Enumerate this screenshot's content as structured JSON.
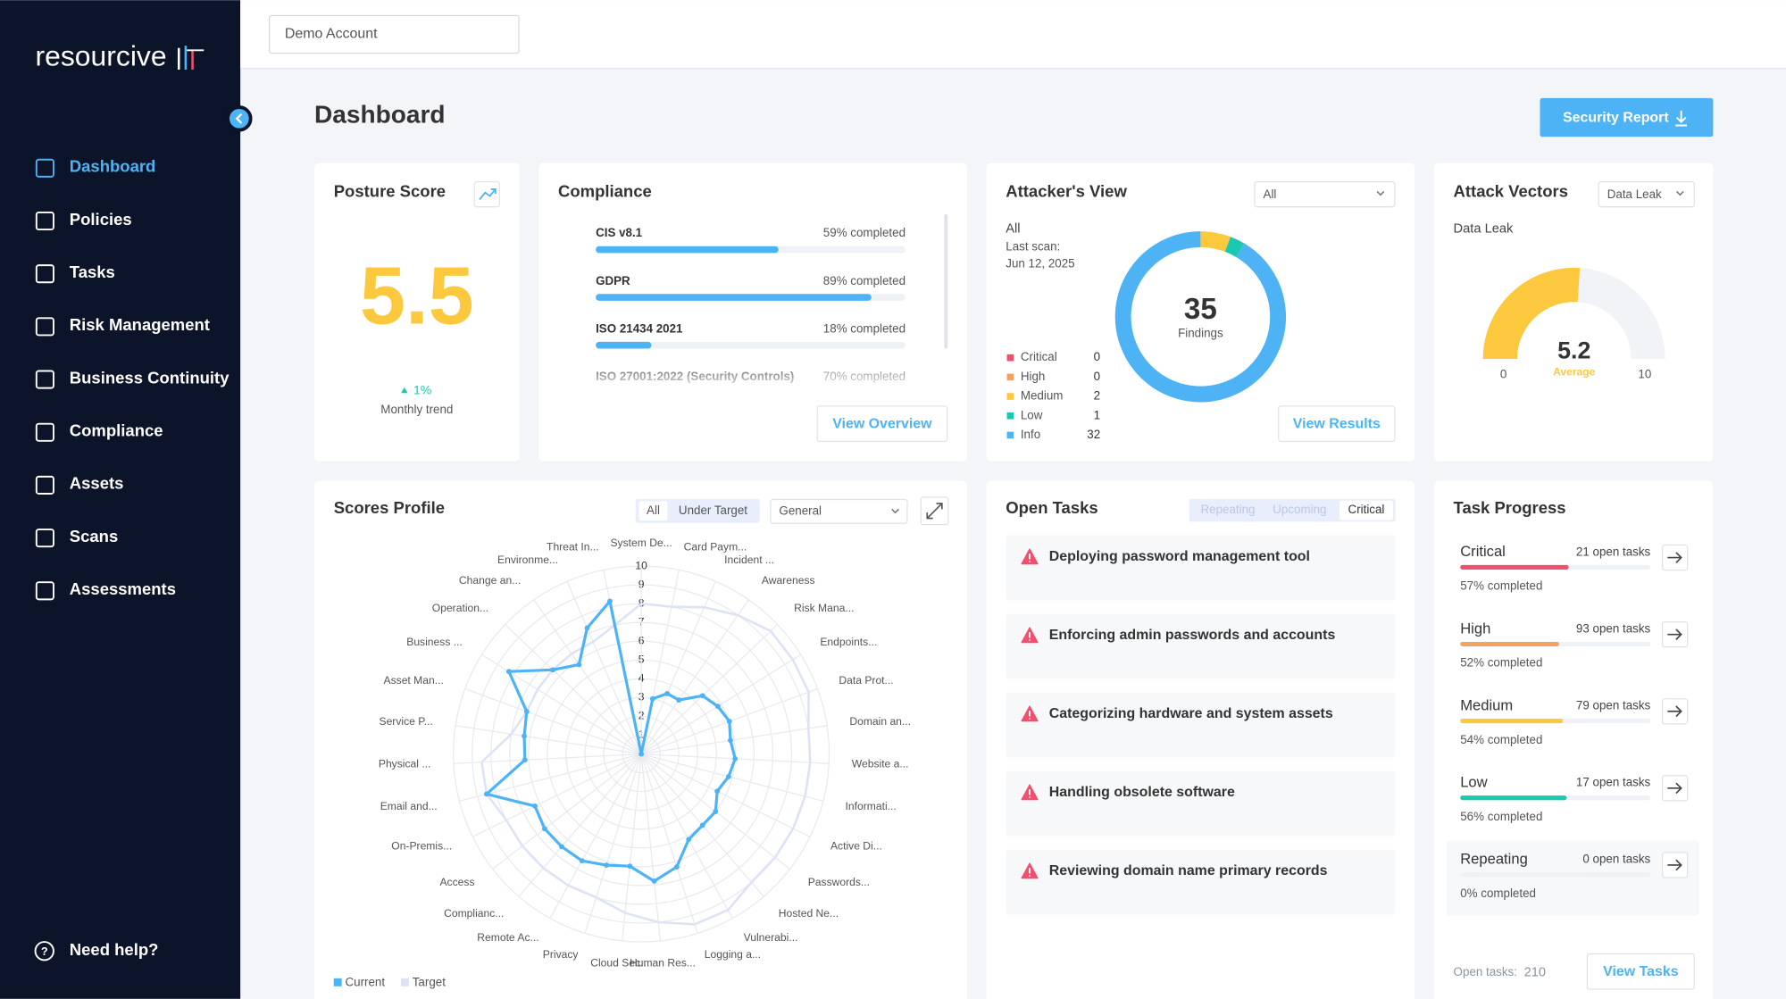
{
  "sidebar": {
    "logo": "resourcive",
    "nav": [
      "Dashboard",
      "Policies",
      "Tasks",
      "Risk Management",
      "Business Continuity",
      "Compliance",
      "Assets",
      "Scans",
      "Assessments"
    ],
    "help": "Need help?"
  },
  "topbar": {
    "account": "Demo Account"
  },
  "header": {
    "title": "Dashboard",
    "button": "Security Report"
  },
  "posture": {
    "title": "Posture Score",
    "score": 5.5,
    "trend": "1%",
    "trend_label": "Monthly trend"
  },
  "compliance": {
    "title": "Compliance",
    "items": [
      {
        "name": "CIS v8.1",
        "value": 59,
        "value_label": "59% completed"
      },
      {
        "name": "GDPR",
        "value": 89,
        "value_label": "89% completed"
      },
      {
        "name": "ISO 21434 2021",
        "value": 18,
        "value_label": "18% completed"
      },
      {
        "name": "ISO 27001:2022 (Security Controls)",
        "value": 70,
        "value_label": "70% completed"
      }
    ],
    "button": "View Overview"
  },
  "attacker": {
    "title": "Attacker's View",
    "filter": "All",
    "scope": "All",
    "last_scan": "Last scan:",
    "last_scan_date": "Jun 12, 2025",
    "total": 35,
    "total_label": "Findings",
    "severities": [
      {
        "name": "Critical",
        "value": 0,
        "color": "#f0506e"
      },
      {
        "name": "High",
        "value": 0,
        "color": "#f5a25d"
      },
      {
        "name": "Medium",
        "value": 2,
        "color": "#fcc93e"
      },
      {
        "name": "Low",
        "value": 1,
        "color": "#1cc8b0"
      },
      {
        "name": "Info",
        "value": 32,
        "color": "#4db3f5"
      }
    ],
    "button": "View Results"
  },
  "vectors": {
    "title": "Attack Vectors",
    "filter": "Data Leak",
    "subtitle": "Data Leak",
    "value": 5.2,
    "value_label": "Average",
    "lim": [
      0,
      10
    ],
    "ticks": [
      0,
      10
    ],
    "color": "#fcc93e"
  },
  "scores_profile": {
    "title": "Scores Profile",
    "toggles": [
      "All",
      "Under Target"
    ],
    "filter": "General",
    "categories": [
      "System De...",
      "Card Paym...",
      "Incident ...",
      "Awareness",
      "Risk Mana...",
      "Endpoints...",
      "Data Prot...",
      "Domain an...",
      "Website a...",
      "Informati...",
      "Active Di...",
      "Passwords...",
      "Hosted Ne...",
      "Vulnerabi...",
      "Logging a...",
      "Human Res...",
      "Cloud Sec...",
      "Privacy",
      "Remote Ac...",
      "Complianc...",
      "Access",
      "On-Premis...",
      "Email and...",
      "Physical ...",
      "Service P...",
      "Asset Man...",
      "Business ...",
      "Operation...",
      "Change an...",
      "Environme...",
      "Threat In..."
    ],
    "rlim": [
      0,
      10
    ],
    "rticks": [
      1,
      2,
      3,
      4,
      5,
      6,
      7,
      8,
      9,
      10
    ],
    "series": [
      {
        "name": "Current",
        "color": "#4db3f5",
        "values": [
          0,
          3,
          3.5,
          3.5,
          4.5,
          4.8,
          5,
          4.8,
          5,
          4.8,
          4.5,
          5,
          5,
          5.2,
          6.3,
          6.8,
          6,
          6.2,
          6.5,
          6.5,
          6.5,
          6.3,
          8.5,
          6.2,
          6.3,
          6.5,
          8.3,
          6.5,
          5.8,
          7.3,
          8.3
        ]
      },
      {
        "name": "Target",
        "color": "#dde2f5",
        "values": [
          8,
          8,
          8.5,
          9,
          9.5,
          9.5,
          9.5,
          9,
          9,
          9,
          9,
          9,
          9,
          9.5,
          9.5,
          9,
          8.5,
          8,
          8,
          8,
          8,
          8,
          8.5,
          8.5,
          7,
          6.5,
          6.5,
          6.5,
          6.5,
          6.5,
          7
        ]
      }
    ]
  },
  "open_tasks": {
    "title": "Open Tasks",
    "tabs": [
      "Repeating",
      "Upcoming",
      "Critical"
    ],
    "tasks": [
      "Deploying password management tool",
      "Enforcing admin passwords and accounts",
      "Categorizing hardware and system assets",
      "Handling obsolete software",
      "Reviewing domain name primary records"
    ]
  },
  "task_progress": {
    "title": "Task Progress",
    "items": [
      {
        "name": "Critical",
        "open_tasks": "21 open tasks",
        "completed": 57,
        "completed_label": "57% completed",
        "color": "#f0506e"
      },
      {
        "name": "High",
        "open_tasks": "93 open tasks",
        "completed": 52,
        "completed_label": "52% completed",
        "color": "#f5a25d"
      },
      {
        "name": "Medium",
        "open_tasks": "79 open tasks",
        "completed": 54,
        "completed_label": "54% completed",
        "color": "#fcc93e"
      },
      {
        "name": "Low",
        "open_tasks": "17 open tasks",
        "completed": 56,
        "completed_label": "56% completed",
        "color": "#1cc8b0"
      },
      {
        "name": "Repeating",
        "open_tasks": "0 open tasks",
        "completed": 0,
        "completed_label": "0% completed",
        "color": "#4db3f5"
      }
    ],
    "total_label": "Open tasks:",
    "total": 210,
    "button": "View Tasks"
  }
}
